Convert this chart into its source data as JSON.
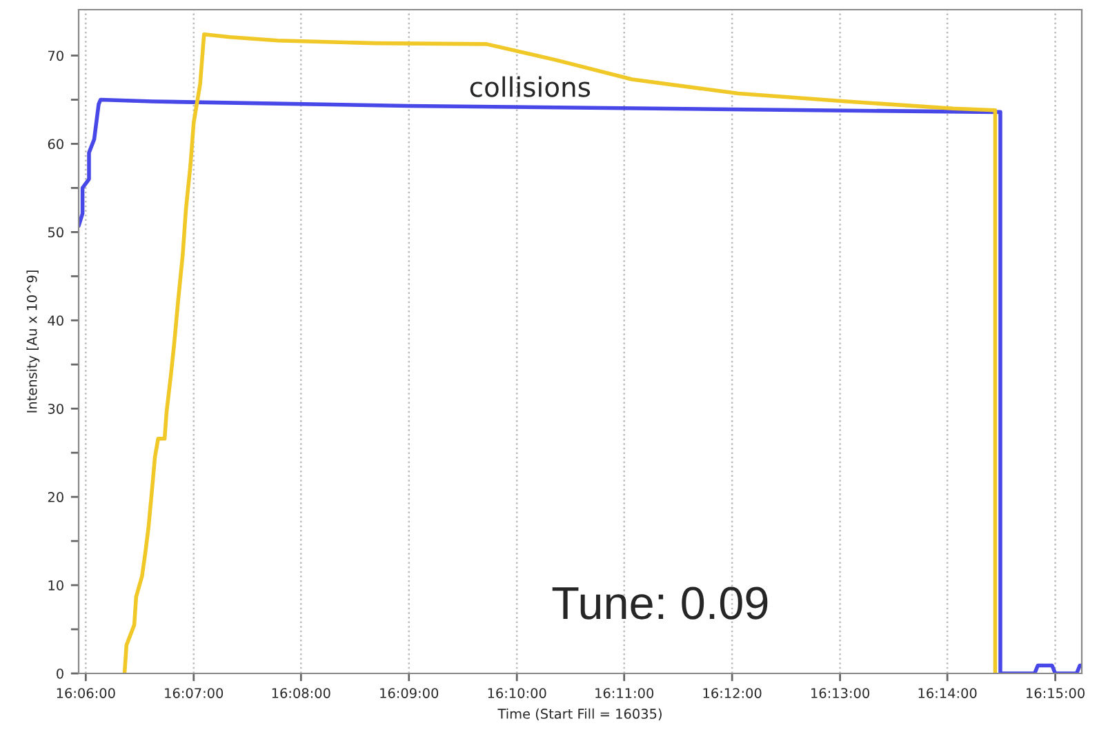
{
  "chart_data": {
    "type": "line",
    "xlabel": "Time (Start Fill = 16035)",
    "ylabel": "Intensity [Au x 10^9]",
    "xlim": [
      16.0989,
      16.2541
    ],
    "ylim": [
      0,
      75.2
    ],
    "xticks": [
      {
        "value": 16.1,
        "label": "16:06:00"
      },
      {
        "value": 16.1167,
        "label": "16:07:00"
      },
      {
        "value": 16.1333,
        "label": "16:08:00"
      },
      {
        "value": 16.15,
        "label": "16:09:00"
      },
      {
        "value": 16.1667,
        "label": "16:10:00"
      },
      {
        "value": 16.1833,
        "label": "16:11:00"
      },
      {
        "value": 16.2,
        "label": "16:12:00"
      },
      {
        "value": 16.2167,
        "label": "16:13:00"
      },
      {
        "value": 16.2333,
        "label": "16:14:00"
      },
      {
        "value": 16.25,
        "label": "16:15:00"
      }
    ],
    "yticks": [
      0,
      {
        "value": 5,
        "label": null
      },
      10,
      {
        "value": 15,
        "label": null
      },
      20,
      {
        "value": 25,
        "label": null
      },
      30,
      {
        "value": 35,
        "label": null
      },
      40,
      {
        "value": 45,
        "label": null
      },
      50,
      {
        "value": 55,
        "label": null
      },
      60,
      {
        "value": 65,
        "label": null
      },
      70
    ],
    "grid": "x",
    "annotations": [
      "collisions",
      "Tune: 0.09"
    ],
    "series": [
      {
        "color": "#4848e8",
        "x": [
          16.0989,
          16.0995,
          16.0995,
          16.1005,
          16.1005,
          16.1013,
          16.102,
          16.1023,
          16.1103,
          16.15,
          16.2,
          16.2408,
          16.2415,
          16.2415,
          16.2468,
          16.2473,
          16.2495,
          16.25,
          16.2533,
          16.2538,
          16.254
        ],
        "values": [
          50.7,
          52.1,
          55,
          56,
          59,
          60.5,
          64.5,
          65,
          64.8,
          64.3,
          63.9,
          63.6,
          63.6,
          0,
          0,
          0.9,
          0.9,
          0,
          0,
          0.9,
          0.9
        ]
      },
      {
        "color": "#f0c828",
        "x": [
          16.106,
          16.1063,
          16.1075,
          16.1078,
          16.1087,
          16.1092,
          16.1097,
          16.1103,
          16.1107,
          16.1112,
          16.1122,
          16.1125,
          16.1132,
          16.1137,
          16.1143,
          16.115,
          16.1155,
          16.1162,
          16.1167,
          16.1177,
          16.1183,
          16.1223,
          16.1297,
          16.1447,
          16.162,
          16.1727,
          16.1845,
          16.201,
          16.2177,
          16.2342,
          16.2407,
          16.2407
        ],
        "values": [
          0,
          3.2,
          5.5,
          8.7,
          11,
          13.6,
          16.5,
          21.2,
          24.5,
          26.6,
          26.6,
          29.6,
          34,
          37.5,
          42.3,
          47.4,
          52.6,
          57.6,
          62.4,
          66.8,
          72.4,
          72.1,
          71.7,
          71.4,
          71.3,
          69.5,
          67.3,
          65.7,
          64.8,
          64,
          63.8,
          0
        ]
      }
    ]
  }
}
